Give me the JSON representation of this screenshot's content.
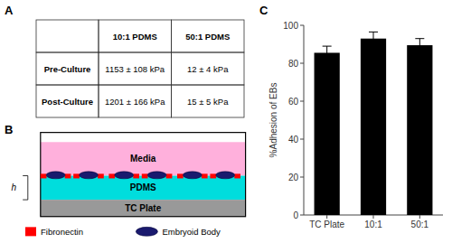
{
  "chart_data": [
    {
      "type": "table",
      "title": "A",
      "columns": [
        null,
        "10:1 PDMS",
        "50:1 PDMS"
      ],
      "rows": [
        [
          "Pre-Culture",
          "1153 ± 108 kPa",
          "12 ± 4 kPa"
        ],
        [
          "Post-Culture",
          "1201 ± 166 kPa",
          "15 ± 5 kPa"
        ]
      ]
    },
    {
      "type": "diagram",
      "title": "B",
      "categories": [
        "Media",
        "PDMS",
        "TC Plate"
      ],
      "colors": [
        "#FFB0DC",
        "#00DDDD",
        "#999999"
      ],
      "annotations": [
        "h"
      ],
      "series": [
        {
          "name": "Fibronectin",
          "color": "#FF0000"
        },
        {
          "name": "Embryoid Body",
          "color": "#1a1a6e"
        }
      ]
    },
    {
      "type": "bar",
      "title": "C",
      "categories": [
        "TC Plate",
        "10:1",
        "50:1"
      ],
      "values": [
        85.5,
        93.0,
        89.5
      ],
      "errors": [
        3.5,
        3.5,
        3.5
      ],
      "color": "#000000",
      "ylabel": "%Adhesion of EBs",
      "ylim": [
        0,
        100
      ],
      "yticks": [
        0,
        20,
        40,
        60,
        80,
        100
      ],
      "grid": false
    }
  ]
}
